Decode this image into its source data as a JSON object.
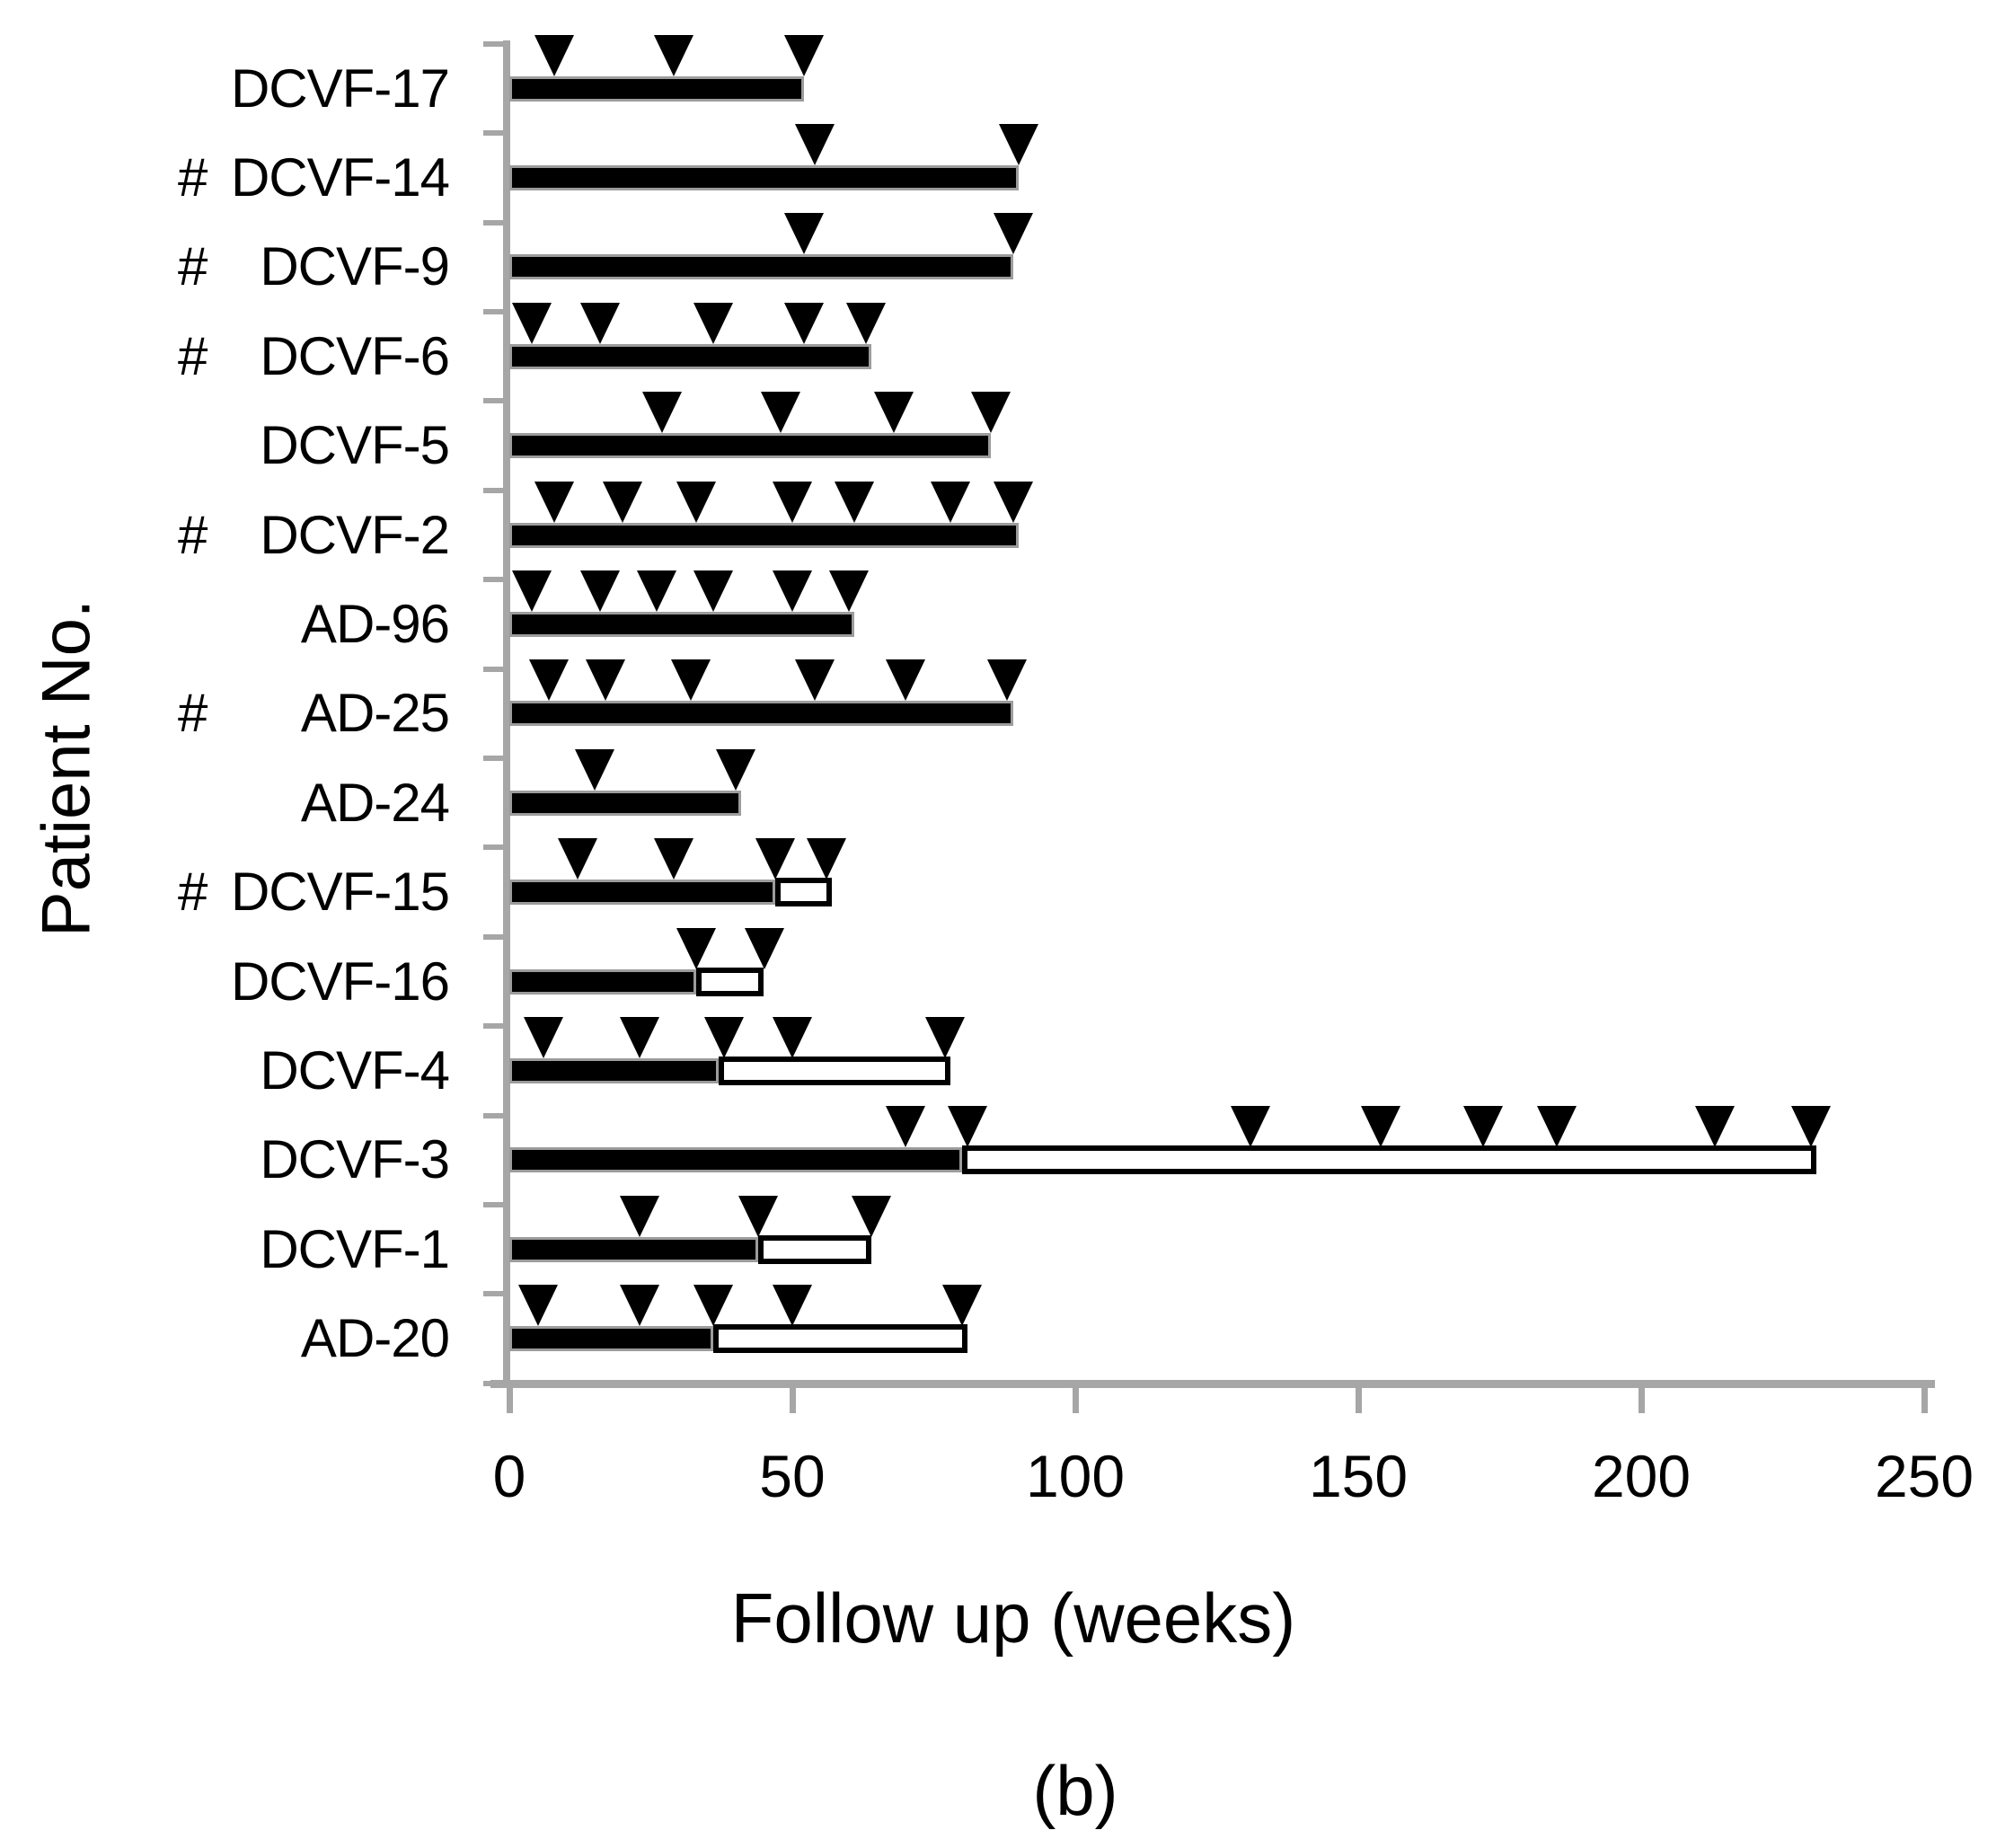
{
  "figure": {
    "y_axis_label": "Patient No.",
    "x_axis_label": "Follow up (weeks)",
    "caption": "(b)",
    "hash_symbol": "#"
  },
  "colors": {
    "bar_filled": "#000000",
    "bar_open": "#ffffff",
    "axis": "#a6a6a6",
    "text": "#000000"
  },
  "chart_data": {
    "type": "bar",
    "orientation": "horizontal",
    "title": "",
    "xlabel": "Follow up (weeks)",
    "ylabel": "Patient No.",
    "xlim": [
      0,
      250
    ],
    "x_ticks": [
      0,
      50,
      100,
      150,
      200,
      250
    ],
    "grid": "off",
    "legend": "none",
    "marker_glyph": "filled-down-triangle",
    "rows": [
      {
        "label": "DCVF-17",
        "hash": false,
        "black_weeks": 52,
        "white_weeks": 0,
        "marker_weeks": [
          8,
          29,
          52
        ]
      },
      {
        "label": "DCVF-14",
        "hash": true,
        "black_weeks": 90,
        "white_weeks": 0,
        "marker_weeks": [
          54,
          90
        ]
      },
      {
        "label": "DCVF-9",
        "hash": true,
        "black_weeks": 89,
        "white_weeks": 0,
        "marker_weeks": [
          52,
          89
        ]
      },
      {
        "label": "DCVF-6",
        "hash": true,
        "black_weeks": 64,
        "white_weeks": 0,
        "marker_weeks": [
          4,
          16,
          36,
          52,
          63
        ]
      },
      {
        "label": "DCVF-5",
        "hash": false,
        "black_weeks": 85,
        "white_weeks": 0,
        "marker_weeks": [
          27,
          48,
          68,
          85
        ]
      },
      {
        "label": "DCVF-2",
        "hash": true,
        "black_weeks": 90,
        "white_weeks": 0,
        "marker_weeks": [
          8,
          20,
          33,
          50,
          61,
          78,
          89
        ]
      },
      {
        "label": "AD-96",
        "hash": false,
        "black_weeks": 61,
        "white_weeks": 0,
        "marker_weeks": [
          4,
          16,
          26,
          36,
          50,
          60
        ]
      },
      {
        "label": "AD-25",
        "hash": true,
        "black_weeks": 89,
        "white_weeks": 0,
        "marker_weeks": [
          7,
          17,
          32,
          54,
          70,
          88
        ]
      },
      {
        "label": "AD-24",
        "hash": false,
        "black_weeks": 41,
        "white_weeks": 0,
        "marker_weeks": [
          15,
          40
        ]
      },
      {
        "label": "DCVF-15",
        "hash": true,
        "black_weeks": 47,
        "white_weeks": 57,
        "marker_weeks": [
          12,
          29,
          47,
          56
        ]
      },
      {
        "label": "DCVF-16",
        "hash": false,
        "black_weeks": 33,
        "white_weeks": 45,
        "marker_weeks": [
          33,
          45
        ]
      },
      {
        "label": "DCVF-4",
        "hash": false,
        "black_weeks": 37,
        "white_weeks": 78,
        "marker_weeks": [
          6,
          23,
          38,
          50,
          77
        ]
      },
      {
        "label": "DCVF-3",
        "hash": false,
        "black_weeks": 80,
        "white_weeks": 231,
        "marker_weeks": [
          70,
          81,
          131,
          154,
          172,
          185,
          213,
          230
        ]
      },
      {
        "label": "DCVF-1",
        "hash": false,
        "black_weeks": 44,
        "white_weeks": 64,
        "marker_weeks": [
          23,
          44,
          64
        ]
      },
      {
        "label": "AD-20",
        "hash": false,
        "black_weeks": 36,
        "white_weeks": 81,
        "marker_weeks": [
          5,
          23,
          36,
          50,
          80
        ]
      }
    ]
  }
}
